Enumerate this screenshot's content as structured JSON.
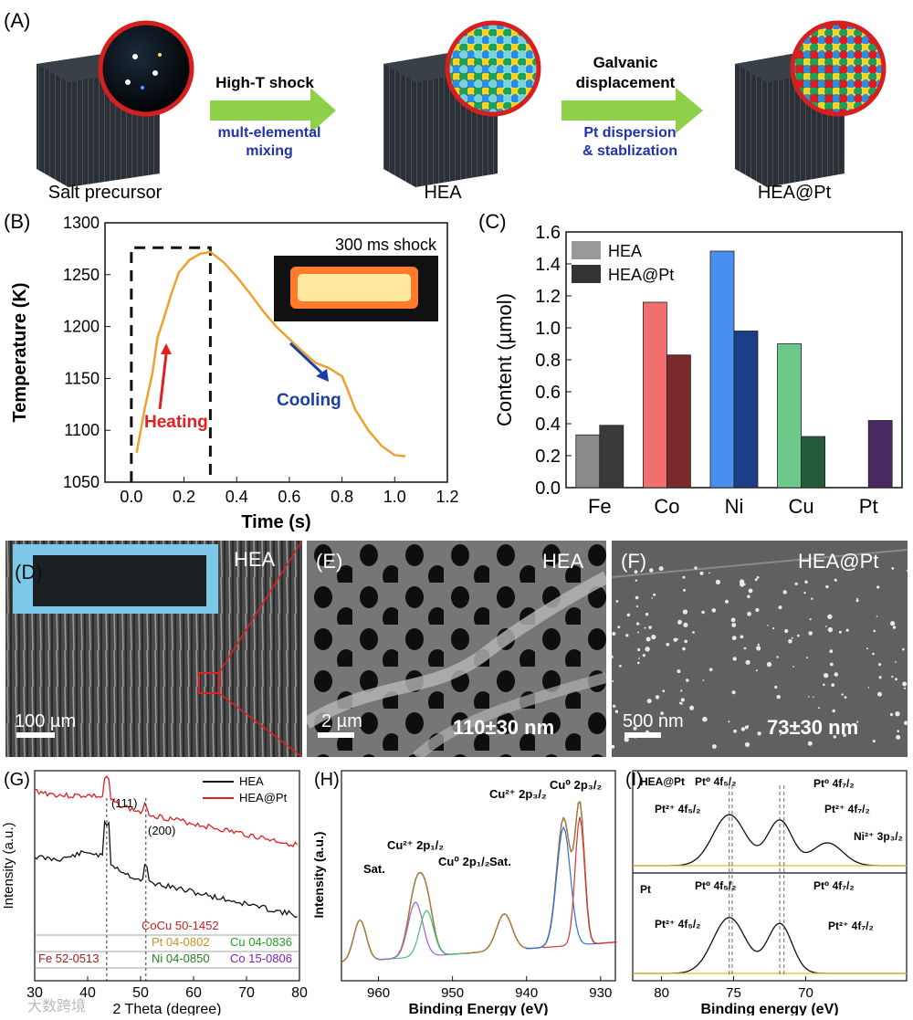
{
  "panel_a": {
    "label": "(A)",
    "step1": {
      "name": "Salt precursor"
    },
    "arrow1": {
      "top": "High-T shock",
      "bottom1": "mult-elemental",
      "bottom2": "mixing"
    },
    "step2": {
      "name": "HEA"
    },
    "arrow2": {
      "top1": "Galvanic",
      "top2": "displacement",
      "bottom1": "Pt dispersion",
      "bottom2": "& stablization"
    },
    "step3": {
      "name": "HEA@Pt"
    }
  },
  "panel_b": {
    "label": "(B)",
    "inset_label": "300 ms shock",
    "heating": "Heating",
    "cooling": "Cooling"
  },
  "panel_c": {
    "label": "(C)"
  },
  "panel_d": {
    "label": "(D)",
    "tag": "HEA",
    "scale": "100 µm"
  },
  "panel_e": {
    "label": "(E)",
    "tag": "HEA",
    "scale": "2 µm",
    "size": "110±30 nm"
  },
  "panel_f": {
    "label": "(F)",
    "tag": "HEA@Pt",
    "scale": "500 nm",
    "size": "73±30 nm"
  },
  "panel_g": {
    "label": "(G)",
    "peak111": "(111)",
    "peak200": "(200)",
    "ref1": "CoCu 50-1452",
    "ref2": "Pt 04-0802",
    "ref3": "Cu 04-0836",
    "ref4": "Fe 52-0513",
    "ref5": "Ni 04-0850",
    "ref6": "Co 15-0806"
  },
  "panel_h": {
    "label": "(H)",
    "sat1": "Sat.",
    "cu2_2p12": "Cu²⁺ 2p₁/₂",
    "cu0_2p12": "Cu⁰ 2p₁/₂",
    "sat2": "Sat.",
    "cu2_2p32": "Cu²⁺ 2p₃/₂",
    "cu0_2p32": "Cu⁰ 2p₃/₂"
  },
  "panel_i": {
    "label": "(I)",
    "top_tag": "HEA@Pt",
    "bottom_tag": "Pt",
    "pt0_4f52": "Pt⁰ 4f₅/₂",
    "pt0_4f72": "Pt⁰ 4f₇/₂",
    "pt2_4f52": "Pt²⁺ 4f₅/₂",
    "pt2_4f72": "Pt²⁺ 4f₇/₂",
    "ni2_3p32": "Ni²⁺ 3p₃/₂",
    "pt0_4f52_b": "Pt⁰ 4f₅/₂",
    "pt0_4f72_b": "Pt⁰ 4f₇/₂",
    "pt2_4f52_b": "Pt²⁺ 4f₅/₂",
    "pt2_4f72_b": "Pt²⁺ 4f₇/₂"
  },
  "watermark": "大数跨境",
  "chart_data": [
    {
      "type": "line",
      "title": "",
      "xlabel": "Time (s)",
      "ylabel": "Temperature (K)",
      "xlim": [
        -0.1,
        1.2
      ],
      "ylim": [
        1050,
        1300
      ],
      "xticks": [
        "0.0",
        "0.2",
        "0.4",
        "0.6",
        "0.8",
        "1.0",
        "1.2"
      ],
      "yticks": [
        "1050",
        "1100",
        "1150",
        "1200",
        "1250",
        "1300"
      ],
      "series": [
        {
          "name": "temperature",
          "color": "#f0a030",
          "x": [
            0.02,
            0.05,
            0.08,
            0.1,
            0.12,
            0.15,
            0.18,
            0.22,
            0.26,
            0.3,
            0.35,
            0.4,
            0.45,
            0.5,
            0.55,
            0.6,
            0.65,
            0.7,
            0.75,
            0.8,
            0.82,
            0.85,
            0.9,
            0.95,
            1.0,
            1.04
          ],
          "y": [
            1078,
            1120,
            1155,
            1190,
            1205,
            1230,
            1252,
            1264,
            1270,
            1272,
            1262,
            1248,
            1232,
            1215,
            1200,
            1188,
            1176,
            1165,
            1160,
            1152,
            1140,
            1120,
            1100,
            1085,
            1076,
            1075
          ]
        }
      ],
      "box": {
        "x": [
          0.0,
          0.3
        ],
        "y_top": 1276
      }
    },
    {
      "type": "bar",
      "title": "",
      "xlabel": "",
      "ylabel": "Content (µmol)",
      "ylim": [
        0.0,
        1.6
      ],
      "yticks": [
        "0.0",
        "0.2",
        "0.4",
        "0.6",
        "0.8",
        "1.0",
        "1.2",
        "1.4",
        "1.6"
      ],
      "categories": [
        "Fe",
        "Co",
        "Ni",
        "Cu",
        "Pt"
      ],
      "series": [
        {
          "name": "HEA",
          "values": [
            0.33,
            1.16,
            1.48,
            0.9,
            0.0
          ],
          "colors": [
            "#8a8a8a",
            "#f07070",
            "#4a8ef0",
            "#6cc98a",
            "#7a4a90"
          ]
        },
        {
          "name": "HEA@Pt",
          "values": [
            0.39,
            0.83,
            0.98,
            0.32,
            0.42
          ],
          "colors": [
            "#3a3a3a",
            "#7a2a2a",
            "#1a3e86",
            "#255a3a",
            "#4a2a60"
          ]
        }
      ],
      "legend": "top-left"
    },
    {
      "type": "line",
      "title": "",
      "xlabel": "2 Theta (degree)",
      "ylabel": "Intensity (a.u.)",
      "xlim": [
        30,
        80
      ],
      "xticks": [
        "30",
        "40",
        "50",
        "60",
        "70",
        "80"
      ],
      "series": [
        {
          "name": "HEA",
          "color": "#111111"
        },
        {
          "name": "HEA@Pt",
          "color": "#e02020"
        }
      ],
      "legend": "top-right"
    },
    {
      "type": "line",
      "title": "",
      "xlabel": "Binding Energy (eV)",
      "ylabel": "Intensity (a.u.)",
      "xlim": [
        965,
        928
      ],
      "xticks": [
        "960",
        "950",
        "940",
        "930"
      ]
    },
    {
      "type": "line",
      "title": "",
      "xlabel": "Binding energy (eV)",
      "ylabel": "Intensity (a.u.)",
      "xlim": [
        82,
        63
      ],
      "xticks": [
        "80",
        "75",
        "70"
      ]
    }
  ]
}
